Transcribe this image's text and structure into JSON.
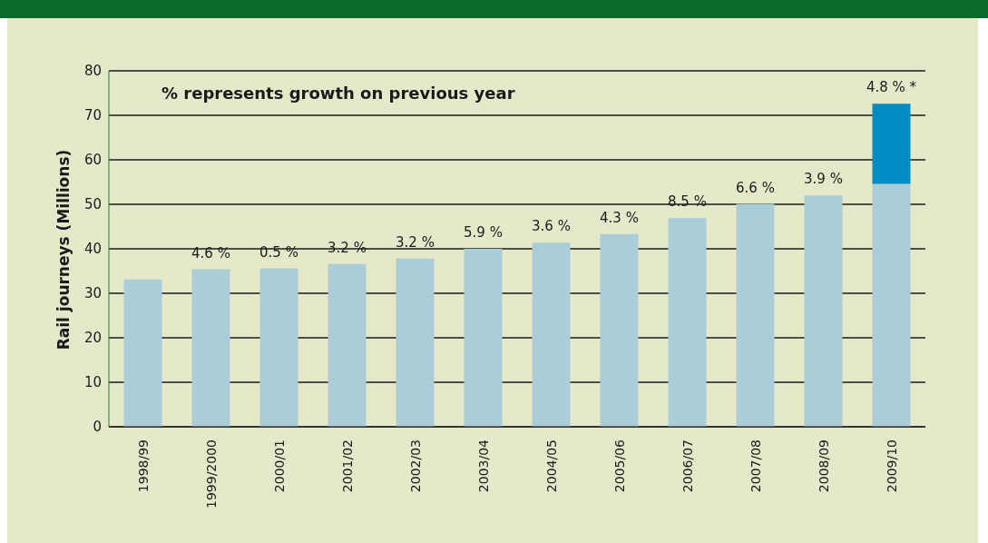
{
  "chart_data": {
    "type": "bar",
    "stacked": true,
    "ylabel": "Rail journeys (Millions)",
    "annotations": [
      "% represents growth on previous year",
      {
        "text": "4.6 %",
        "x": "1999/2000",
        "y": 35.4
      },
      {
        "text": "0.5 %",
        "x": "2000/01",
        "y": 35.6
      },
      {
        "text": "3.2 %",
        "x": "2001/02",
        "y": 36.6
      },
      {
        "text": "3.2 %",
        "x": "2002/03",
        "y": 37.8
      },
      {
        "text": "5.9 %",
        "x": "2003/04",
        "y": 40.0
      },
      {
        "text": "3.6 %",
        "x": "2004/05",
        "y": 41.4
      },
      {
        "text": "4.3 %",
        "x": "2005/06",
        "y": 43.3
      },
      {
        "text": "8.5 %",
        "x": "2006/07",
        "y": 46.9
      },
      {
        "text": "6.6 %",
        "x": "2007/08",
        "y": 50.1
      },
      {
        "text": "3.9 %",
        "x": "2008/09",
        "y": 52.0
      },
      {
        "text": "4.8 % *",
        "x": "2009/10",
        "y": 72.6
      }
    ],
    "categories": [
      "1998/99",
      "1999/2000",
      "2000/01",
      "2001/02",
      "2002/03",
      "2003/04",
      "2004/05",
      "2005/06",
      "2006/07",
      "2007/08",
      "2008/09",
      "2009/10"
    ],
    "series": [
      {
        "color": "#aacdd8",
        "values": [
          33.1,
          35.4,
          35.6,
          36.6,
          37.8,
          40.0,
          41.4,
          43.3,
          46.9,
          50.1,
          52.0,
          54.6
        ]
      },
      {
        "color": "#008cc2",
        "values": [
          null,
          null,
          null,
          null,
          null,
          null,
          null,
          null,
          null,
          null,
          null,
          18.0
        ]
      }
    ],
    "ylim": [
      0,
      80
    ],
    "yticks": [
      0,
      10,
      20,
      30,
      40,
      50,
      60,
      70,
      80
    ],
    "grid": "y",
    "legend": false
  }
}
